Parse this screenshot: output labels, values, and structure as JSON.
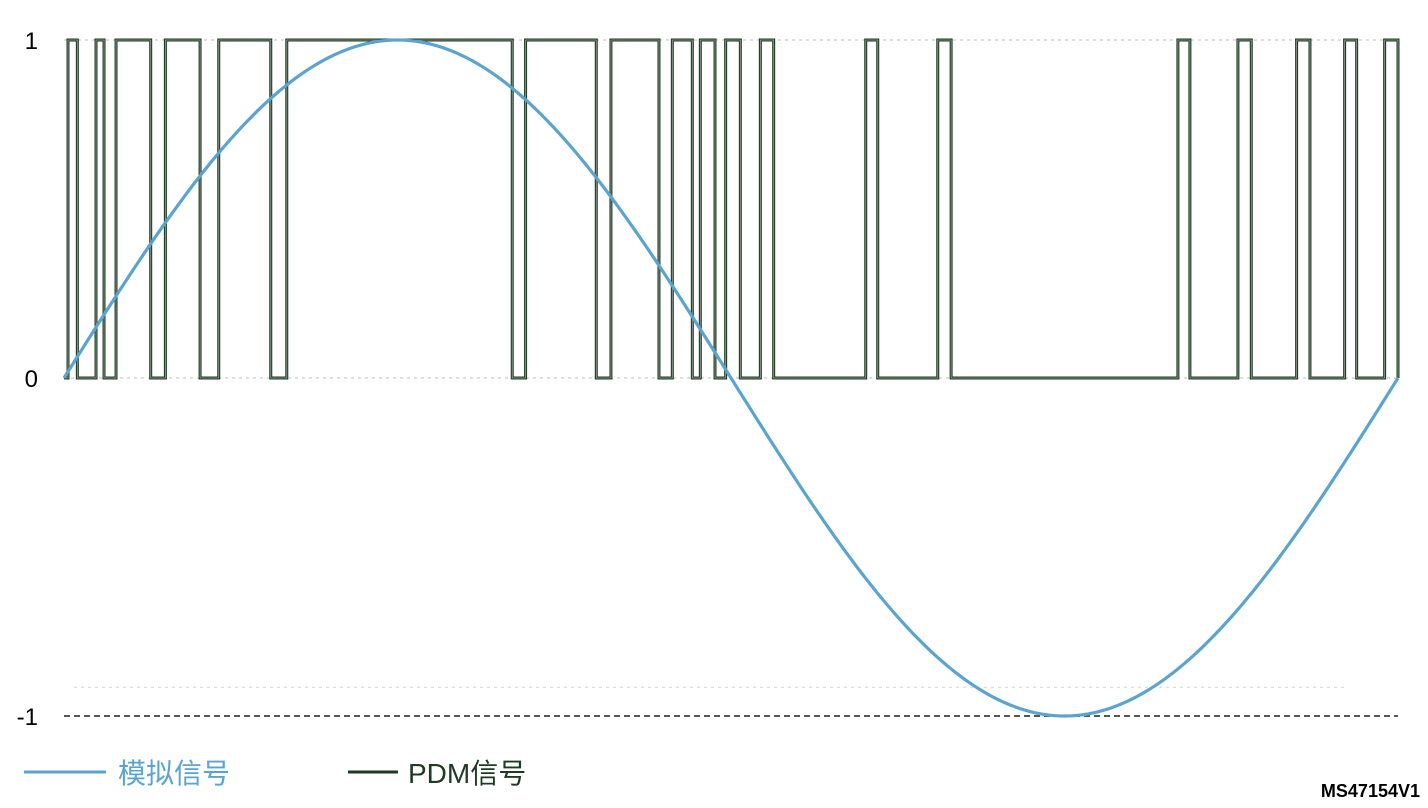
{
  "colors": {
    "analog": "#5aa4cf",
    "pdm": "#1f3a22",
    "grid": "#bbbbbb",
    "baseline": "#555555",
    "text": "#000000"
  },
  "figure_id": "MS47154V1",
  "legend": {
    "analog_label": "模拟信号",
    "pdm_label": "PDM信号"
  },
  "chart_data": {
    "type": "line",
    "title": "",
    "xlabel": "",
    "ylabel": "",
    "x_range": [
      0,
      1
    ],
    "ylim": [
      -1,
      1
    ],
    "y_ticks": [
      1,
      0,
      -1
    ],
    "y_tick_labels": [
      "1",
      "0",
      "-1"
    ],
    "series": [
      {
        "name": "模拟信号",
        "kind": "sine",
        "amplitude": 1,
        "periods": 1,
        "x": [
          0,
          0.05,
          0.1,
          0.15,
          0.2,
          0.25,
          0.3,
          0.35,
          0.4,
          0.45,
          0.5,
          0.55,
          0.6,
          0.65,
          0.7,
          0.75,
          0.8,
          0.85,
          0.9,
          0.95,
          1
        ],
        "y": [
          0,
          0.31,
          0.59,
          0.81,
          0.95,
          1,
          0.95,
          0.81,
          0.59,
          0.31,
          0,
          -0.31,
          -0.59,
          -0.81,
          -0.95,
          -1,
          -0.95,
          -0.81,
          -0.59,
          -0.31,
          0
        ]
      },
      {
        "name": "PDM信号",
        "kind": "step",
        "high_intervals": [
          [
            0.003,
            0.01
          ],
          [
            0.024,
            0.03
          ],
          [
            0.039,
            0.065
          ],
          [
            0.076,
            0.102
          ],
          [
            0.116,
            0.155
          ],
          [
            0.167,
            0.336
          ],
          [
            0.346,
            0.399
          ],
          [
            0.41,
            0.446
          ],
          [
            0.456,
            0.471
          ],
          [
            0.477,
            0.488
          ],
          [
            0.496,
            0.507
          ],
          [
            0.522,
            0.532
          ],
          [
            0.601,
            0.61
          ],
          [
            0.655,
            0.665
          ],
          [
            0.835,
            0.844
          ],
          [
            0.88,
            0.89
          ],
          [
            0.924,
            0.934
          ],
          [
            0.96,
            0.969
          ],
          [
            0.99,
            1.0
          ]
        ]
      }
    ],
    "grid": "dotted horizontal at 1, 0, -1",
    "legend_position": "bottom-left"
  }
}
